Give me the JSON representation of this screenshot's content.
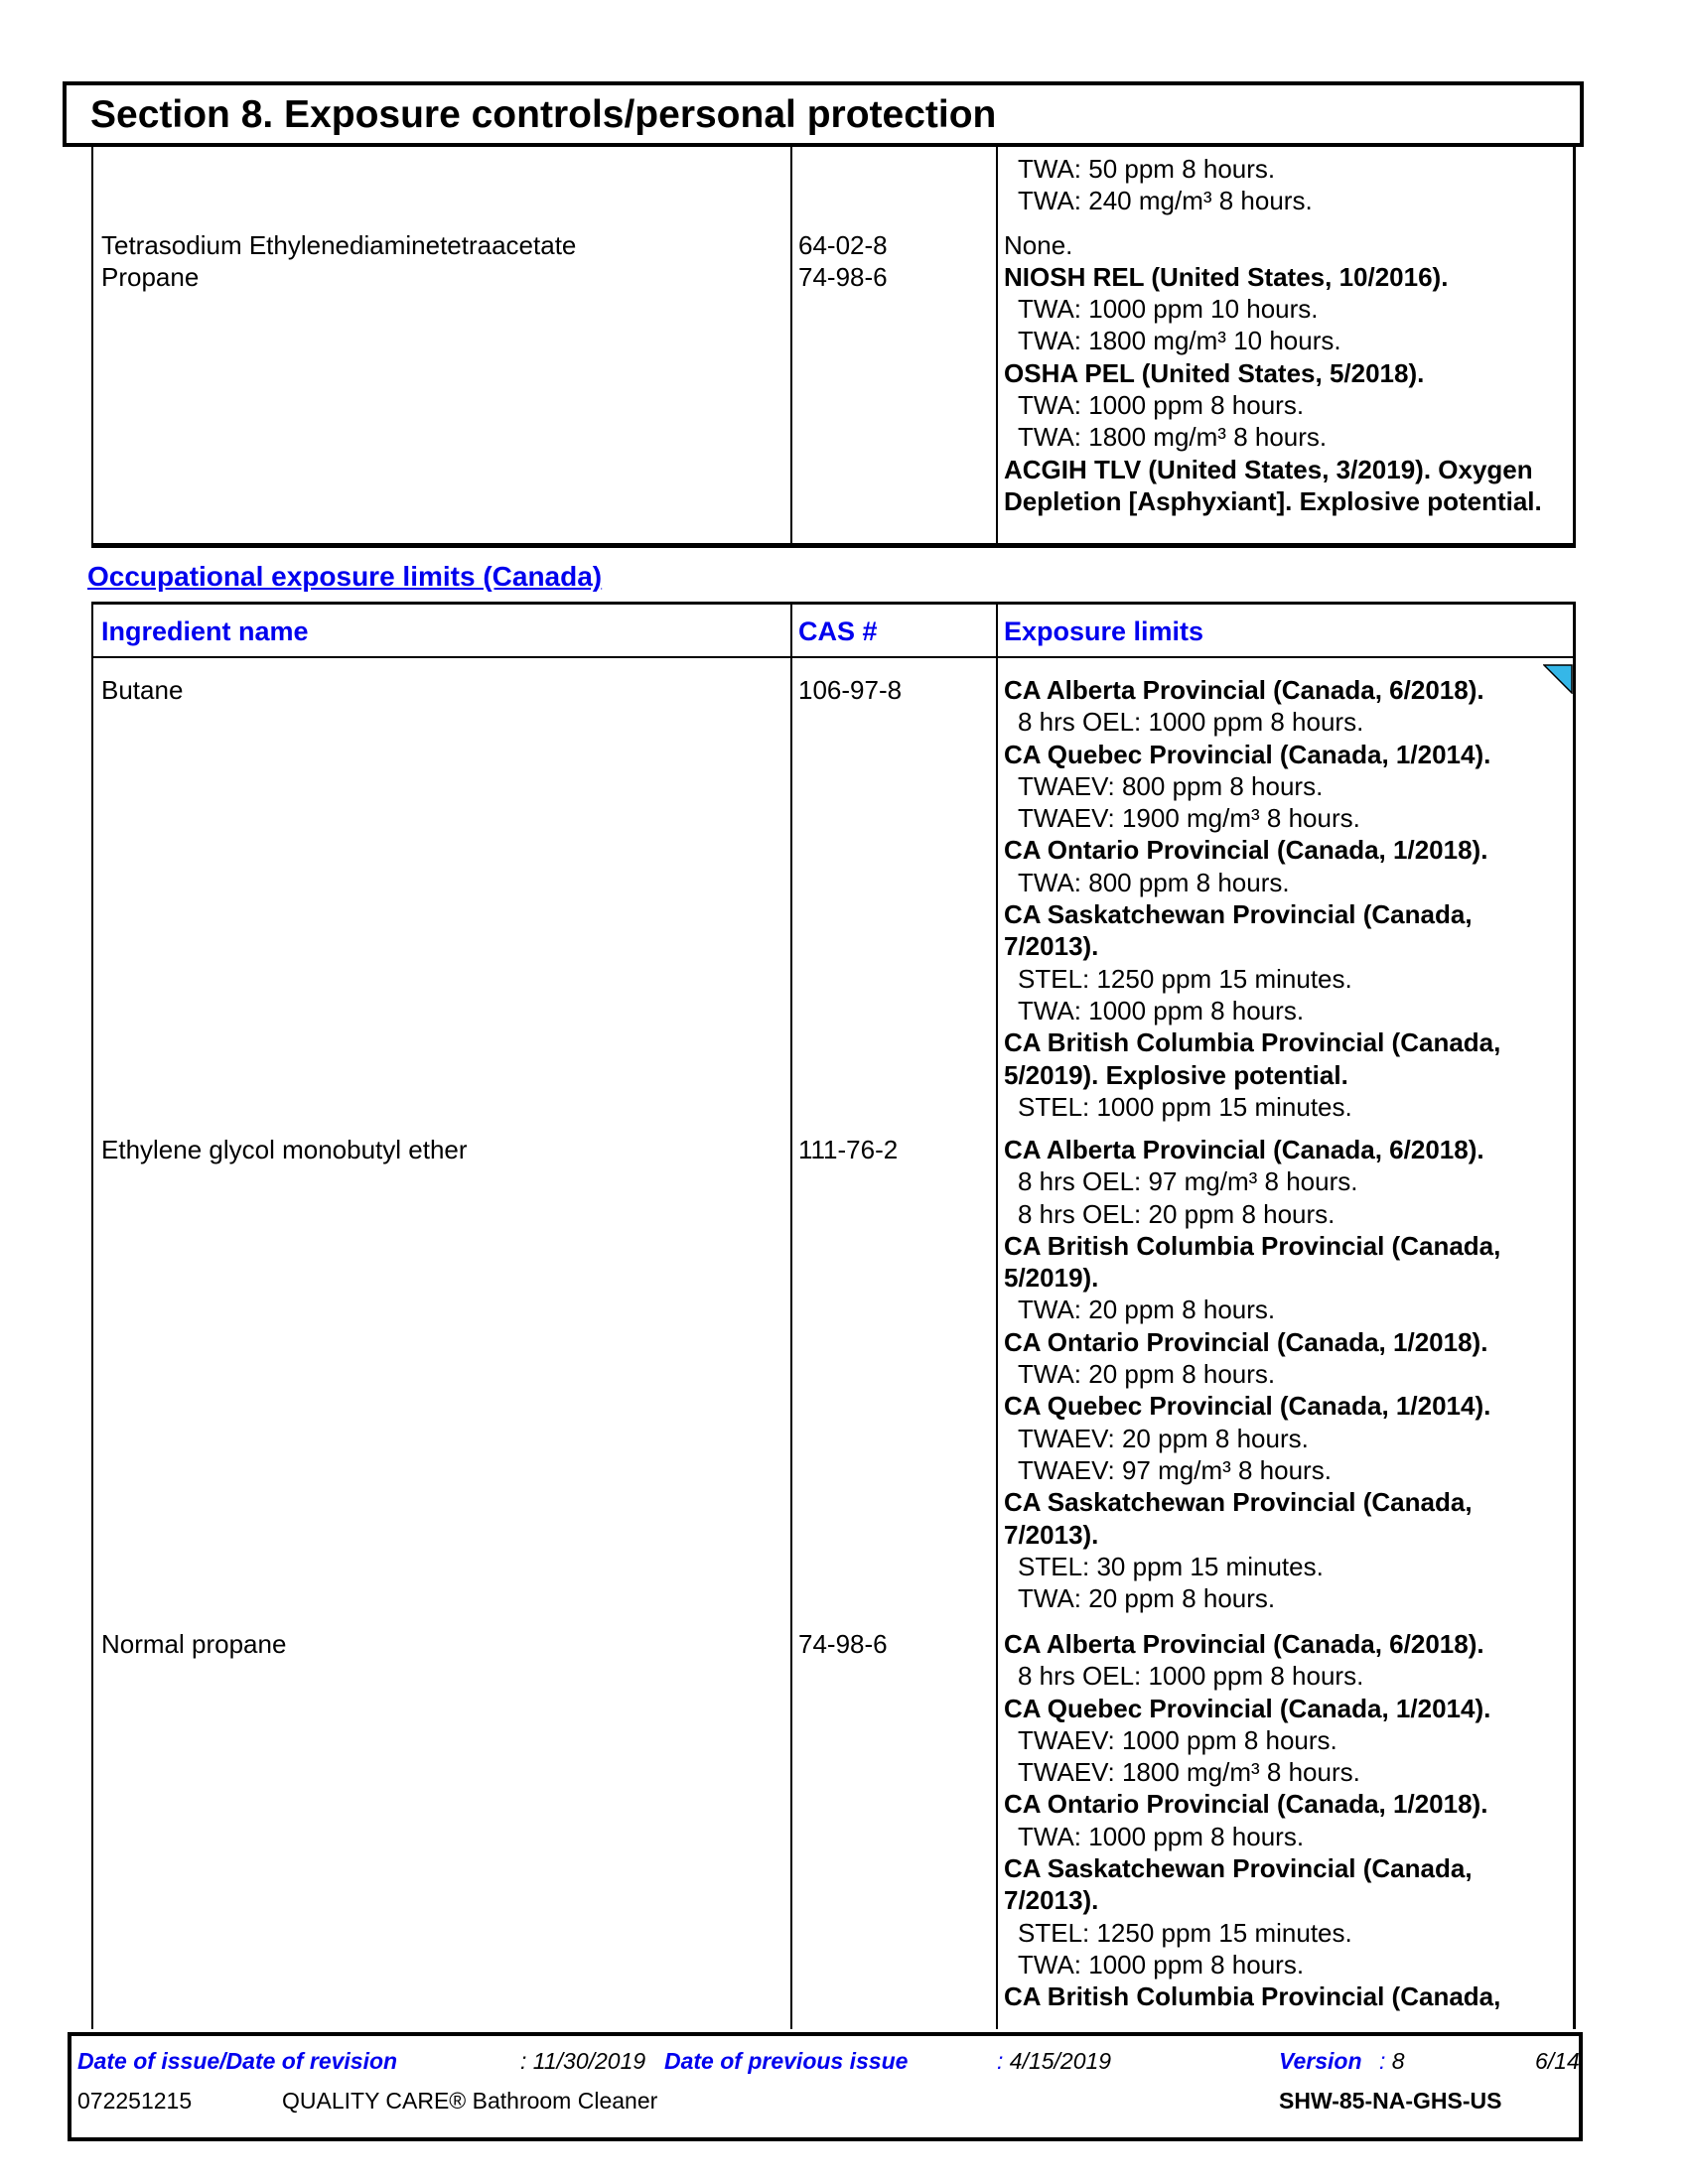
{
  "section_header": {
    "title": "Section 8. Exposure controls/personal protection"
  },
  "canada_heading": "Occupational exposure limits (Canada)",
  "us_table": {
    "row": {
      "ingredient_lines": [
        {
          "t": "",
          "s": "blank"
        },
        {
          "t": "",
          "s": "blank"
        },
        {
          "t": "",
          "s": "spacer"
        },
        {
          "t": "Tetrasodium Ethylenediaminetetraacetate",
          "s": "plain"
        },
        {
          "t": "Propane",
          "s": "plain"
        }
      ],
      "cas_lines": [
        {
          "t": "",
          "s": "blank"
        },
        {
          "t": "",
          "s": "blank"
        },
        {
          "t": "",
          "s": "spacer"
        },
        {
          "t": "64-02-8",
          "s": "plain"
        },
        {
          "t": "74-98-6",
          "s": "plain"
        }
      ],
      "limits_lines": [
        {
          "t": "TWA: 50 ppm 8 hours.",
          "s": "detail"
        },
        {
          "t": "TWA: 240 mg/m³ 8 hours.",
          "s": "detail"
        },
        {
          "t": "",
          "s": "spacer"
        },
        {
          "t": "None.",
          "s": "plain"
        },
        {
          "t": "NIOSH REL (United States, 10/2016).",
          "s": "bold"
        },
        {
          "t": "TWA: 1000 ppm 10 hours.",
          "s": "detail"
        },
        {
          "t": "TWA: 1800 mg/m³ 10 hours.",
          "s": "detail"
        },
        {
          "t": "OSHA PEL (United States, 5/2018).",
          "s": "bold"
        },
        {
          "t": "TWA: 1000 ppm 8 hours.",
          "s": "detail"
        },
        {
          "t": "TWA: 1800 mg/m³ 8 hours.",
          "s": "detail"
        },
        {
          "t": "ACGIH TLV (United States, 3/2019). Oxygen",
          "s": "bold"
        },
        {
          "t": "Depletion [Asphyxiant]. Explosive potential.",
          "s": "bold"
        }
      ]
    }
  },
  "canada_table": {
    "headers": {
      "ingredient": "Ingredient name",
      "cas": "CAS #",
      "limits": "Exposure limits"
    },
    "change_marker_color": "#35B7E8",
    "rows": [
      {
        "ingredient": "Butane",
        "cas": "106-97-8",
        "change_marker": true,
        "lines": [
          {
            "t": "CA Alberta Provincial (Canada, 6/2018).",
            "s": "bold"
          },
          {
            "t": "8 hrs OEL: 1000 ppm 8 hours.",
            "s": "detail"
          },
          {
            "t": "CA Quebec Provincial (Canada, 1/2014).",
            "s": "bold"
          },
          {
            "t": "TWAEV: 800 ppm 8 hours.",
            "s": "detail"
          },
          {
            "t": "TWAEV: 1900 mg/m³ 8 hours.",
            "s": "detail"
          },
          {
            "t": "CA Ontario Provincial (Canada, 1/2018).",
            "s": "bold"
          },
          {
            "t": "TWA: 800 ppm 8 hours.",
            "s": "detail"
          },
          {
            "t": "CA Saskatchewan Provincial (Canada,",
            "s": "bold"
          },
          {
            "t": "7/2013).",
            "s": "bold"
          },
          {
            "t": "STEL: 1250 ppm 15 minutes.",
            "s": "detail"
          },
          {
            "t": "TWA: 1000 ppm 8 hours.",
            "s": "detail"
          },
          {
            "t": "CA British Columbia Provincial (Canada,",
            "s": "bold"
          },
          {
            "t": "5/2019). Explosive potential.",
            "s": "bold"
          },
          {
            "t": "STEL: 1000 ppm 15 minutes.",
            "s": "detail"
          }
        ]
      },
      {
        "ingredient": "Ethylene glycol monobutyl ether",
        "cas": "111-76-2",
        "change_marker": false,
        "lines": [
          {
            "t": "CA Alberta Provincial (Canada, 6/2018).",
            "s": "bold"
          },
          {
            "t": "8 hrs OEL: 97 mg/m³ 8 hours.",
            "s": "detail"
          },
          {
            "t": "8 hrs OEL: 20 ppm 8 hours.",
            "s": "detail"
          },
          {
            "t": "CA British Columbia Provincial (Canada,",
            "s": "bold"
          },
          {
            "t": "5/2019).",
            "s": "bold"
          },
          {
            "t": "TWA: 20 ppm 8 hours.",
            "s": "detail"
          },
          {
            "t": "CA Ontario Provincial (Canada, 1/2018).",
            "s": "bold"
          },
          {
            "t": "TWA: 20 ppm 8 hours.",
            "s": "detail"
          },
          {
            "t": "CA Quebec Provincial (Canada, 1/2014).",
            "s": "bold"
          },
          {
            "t": "TWAEV: 20 ppm 8 hours.",
            "s": "detail"
          },
          {
            "t": "TWAEV: 97 mg/m³ 8 hours.",
            "s": "detail"
          },
          {
            "t": "CA Saskatchewan Provincial (Canada,",
            "s": "bold"
          },
          {
            "t": "7/2013).",
            "s": "bold"
          },
          {
            "t": "STEL: 30 ppm 15 minutes.",
            "s": "detail"
          },
          {
            "t": "TWA: 20 ppm 8 hours.",
            "s": "detail"
          }
        ]
      },
      {
        "ingredient": "Normal propane",
        "cas": "74-98-6",
        "change_marker": false,
        "lines": [
          {
            "t": "CA Alberta Provincial (Canada, 6/2018).",
            "s": "bold"
          },
          {
            "t": "8 hrs OEL: 1000 ppm 8 hours.",
            "s": "detail"
          },
          {
            "t": "CA Quebec Provincial (Canada, 1/2014).",
            "s": "bold"
          },
          {
            "t": "TWAEV: 1000 ppm 8 hours.",
            "s": "detail"
          },
          {
            "t": "TWAEV: 1800 mg/m³ 8 hours.",
            "s": "detail"
          },
          {
            "t": "CA Ontario Provincial (Canada, 1/2018).",
            "s": "bold"
          },
          {
            "t": "TWA: 1000 ppm 8 hours.",
            "s": "detail"
          },
          {
            "t": "CA Saskatchewan Provincial (Canada,",
            "s": "bold"
          },
          {
            "t": "7/2013).",
            "s": "bold"
          },
          {
            "t": "STEL: 1250 ppm 15 minutes.",
            "s": "detail"
          },
          {
            "t": "TWA: 1000 ppm 8 hours.",
            "s": "detail"
          },
          {
            "t": "CA British Columbia Provincial (Canada,",
            "s": "bold"
          }
        ]
      }
    ]
  },
  "footer": {
    "issue": {
      "label": "Date of issue/Date of revision",
      "colon": ":",
      "value": "11/30/2019"
    },
    "previous": {
      "label": "Date of previous issue",
      "colon": ":",
      "value": "4/15/2019"
    },
    "version": {
      "label": "Version",
      "colon": ":",
      "value": "8"
    },
    "page_number": "6/14",
    "doc_number": "072251215",
    "product_name": "QUALITY CARE® Bathroom Cleaner",
    "code": "SHW-85-NA-GHS-US"
  },
  "colors": {
    "blue": "#0000EE",
    "change_marker": "#35B7E8"
  }
}
